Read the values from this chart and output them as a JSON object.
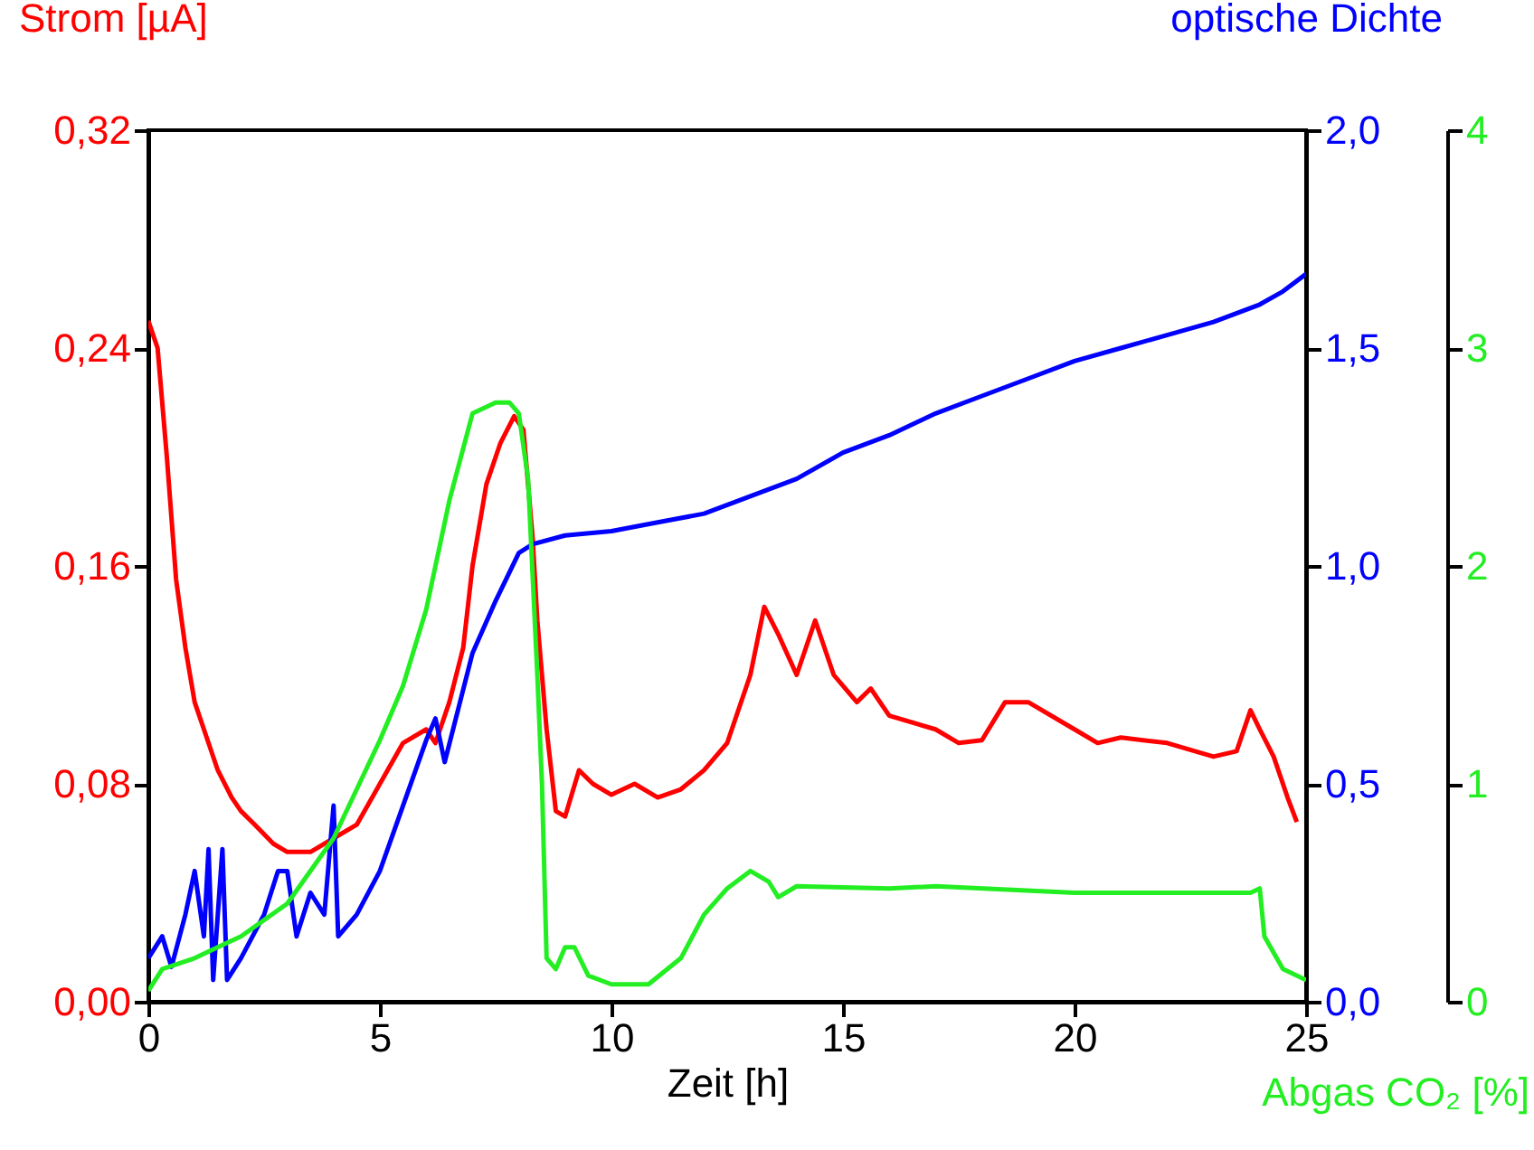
{
  "chart_data": {
    "type": "line",
    "xlabel": "Zeit [h]",
    "ylabel": "Strom [µA]",
    "y2label": "optische Dichte",
    "y3label": "Abgas CO₂ [%]",
    "xlim": [
      0,
      25
    ],
    "xticks": [
      0,
      5,
      10,
      15,
      20,
      25
    ],
    "ylim": [
      0,
      0.32
    ],
    "yticks": [
      {
        "value": 0,
        "label": "0,00"
      },
      {
        "value": 0.08,
        "label": "0,08"
      },
      {
        "value": 0.16,
        "label": "0,16"
      },
      {
        "value": 0.24,
        "label": "0,24"
      },
      {
        "value": 0.32,
        "label": "0,32"
      }
    ],
    "y2lim": [
      0,
      2
    ],
    "y2ticks": [
      {
        "value": 0,
        "label": "0,0"
      },
      {
        "value": 0.5,
        "label": "0,5"
      },
      {
        "value": 1,
        "label": "1,0"
      },
      {
        "value": 1.5,
        "label": "1,5"
      },
      {
        "value": 2,
        "label": "2,0"
      }
    ],
    "y3lim": [
      0,
      4
    ],
    "y3ticks": [
      0,
      1,
      2,
      3,
      4
    ],
    "grid": false,
    "marker": "none",
    "line_style": "solid",
    "series": [
      {
        "color": "#ff0000",
        "axis": "y",
        "x": [
          0,
          0.2,
          0.4,
          0.6,
          0.8,
          1.0,
          1.2,
          1.5,
          1.8,
          2.0,
          2.3,
          2.7,
          3.0,
          3.5,
          4.0,
          4.5,
          5.0,
          5.5,
          6.0,
          6.2,
          6.5,
          6.8,
          7.0,
          7.3,
          7.6,
          7.9,
          8.1,
          8.3,
          8.4,
          8.6,
          8.8,
          9.0,
          9.3,
          9.6,
          10.0,
          10.5,
          11,
          11.5,
          12,
          12.5,
          13.0,
          13.3,
          13.6,
          14,
          14.4,
          14.8,
          15.3,
          15.6,
          16,
          17,
          17.5,
          18,
          18.5,
          19,
          20,
          20.5,
          21,
          22,
          23,
          23.5,
          23.8,
          24,
          24.3,
          24.6,
          24.8
        ],
        "values": [
          0.25,
          0.24,
          0.2,
          0.155,
          0.13,
          0.11,
          0.1,
          0.085,
          0.075,
          0.07,
          0.065,
          0.058,
          0.055,
          0.055,
          0.06,
          0.065,
          0.08,
          0.095,
          0.1,
          0.095,
          0.11,
          0.13,
          0.16,
          0.19,
          0.205,
          0.215,
          0.21,
          0.17,
          0.14,
          0.1,
          0.07,
          0.068,
          0.085,
          0.08,
          0.076,
          0.08,
          0.075,
          0.078,
          0.085,
          0.095,
          0.12,
          0.145,
          0.135,
          0.12,
          0.14,
          0.12,
          0.11,
          0.115,
          0.105,
          0.1,
          0.095,
          0.096,
          0.11,
          0.11,
          0.1,
          0.095,
          0.097,
          0.095,
          0.09,
          0.092,
          0.107,
          0.1,
          0.09,
          0.075,
          0.066
        ]
      },
      {
        "color": "#0000ff",
        "axis": "y2",
        "x": [
          0,
          0.3,
          0.5,
          0.8,
          1.0,
          1.2,
          1.3,
          1.4,
          1.6,
          1.7,
          2.0,
          2.5,
          2.8,
          3.0,
          3.2,
          3.5,
          3.8,
          4.0,
          4.1,
          4.5,
          5.0,
          5.5,
          6.0,
          6.2,
          6.4,
          7.0,
          7.5,
          8.0,
          8.3,
          9,
          10,
          11,
          12,
          13,
          14,
          15,
          16,
          17,
          18,
          19,
          20,
          21,
          22,
          23,
          24,
          24.5,
          25
        ],
        "values": [
          0.1,
          0.15,
          0.08,
          0.2,
          0.3,
          0.15,
          0.35,
          0.05,
          0.35,
          0.05,
          0.1,
          0.2,
          0.3,
          0.3,
          0.15,
          0.25,
          0.2,
          0.45,
          0.15,
          0.2,
          0.3,
          0.45,
          0.6,
          0.65,
          0.55,
          0.8,
          0.92,
          1.03,
          1.05,
          1.07,
          1.08,
          1.1,
          1.12,
          1.16,
          1.2,
          1.26,
          1.3,
          1.35,
          1.39,
          1.43,
          1.47,
          1.5,
          1.53,
          1.56,
          1.6,
          1.63,
          1.67
        ]
      },
      {
        "color": "#22ee22",
        "axis": "y3",
        "x": [
          0,
          0.3,
          1,
          2,
          3,
          4,
          5,
          5.5,
          6,
          6.5,
          7,
          7.5,
          7.8,
          8.0,
          8.2,
          8.4,
          8.5,
          8.6,
          8.8,
          9.0,
          9.2,
          9.5,
          10.0,
          10.8,
          11.5,
          12,
          12.5,
          13,
          13.4,
          13.6,
          14,
          16,
          17,
          20,
          23.8,
          24,
          24.1,
          24.5,
          25
        ],
        "values": [
          0.05,
          0.15,
          0.2,
          0.3,
          0.45,
          0.75,
          1.2,
          1.45,
          1.8,
          2.3,
          2.7,
          2.75,
          2.75,
          2.7,
          2.4,
          1.5,
          1.0,
          0.2,
          0.15,
          0.25,
          0.25,
          0.12,
          0.08,
          0.08,
          0.2,
          0.4,
          0.52,
          0.6,
          0.55,
          0.48,
          0.53,
          0.52,
          0.53,
          0.5,
          0.5,
          0.52,
          0.3,
          0.15,
          0.1
        ]
      }
    ]
  }
}
